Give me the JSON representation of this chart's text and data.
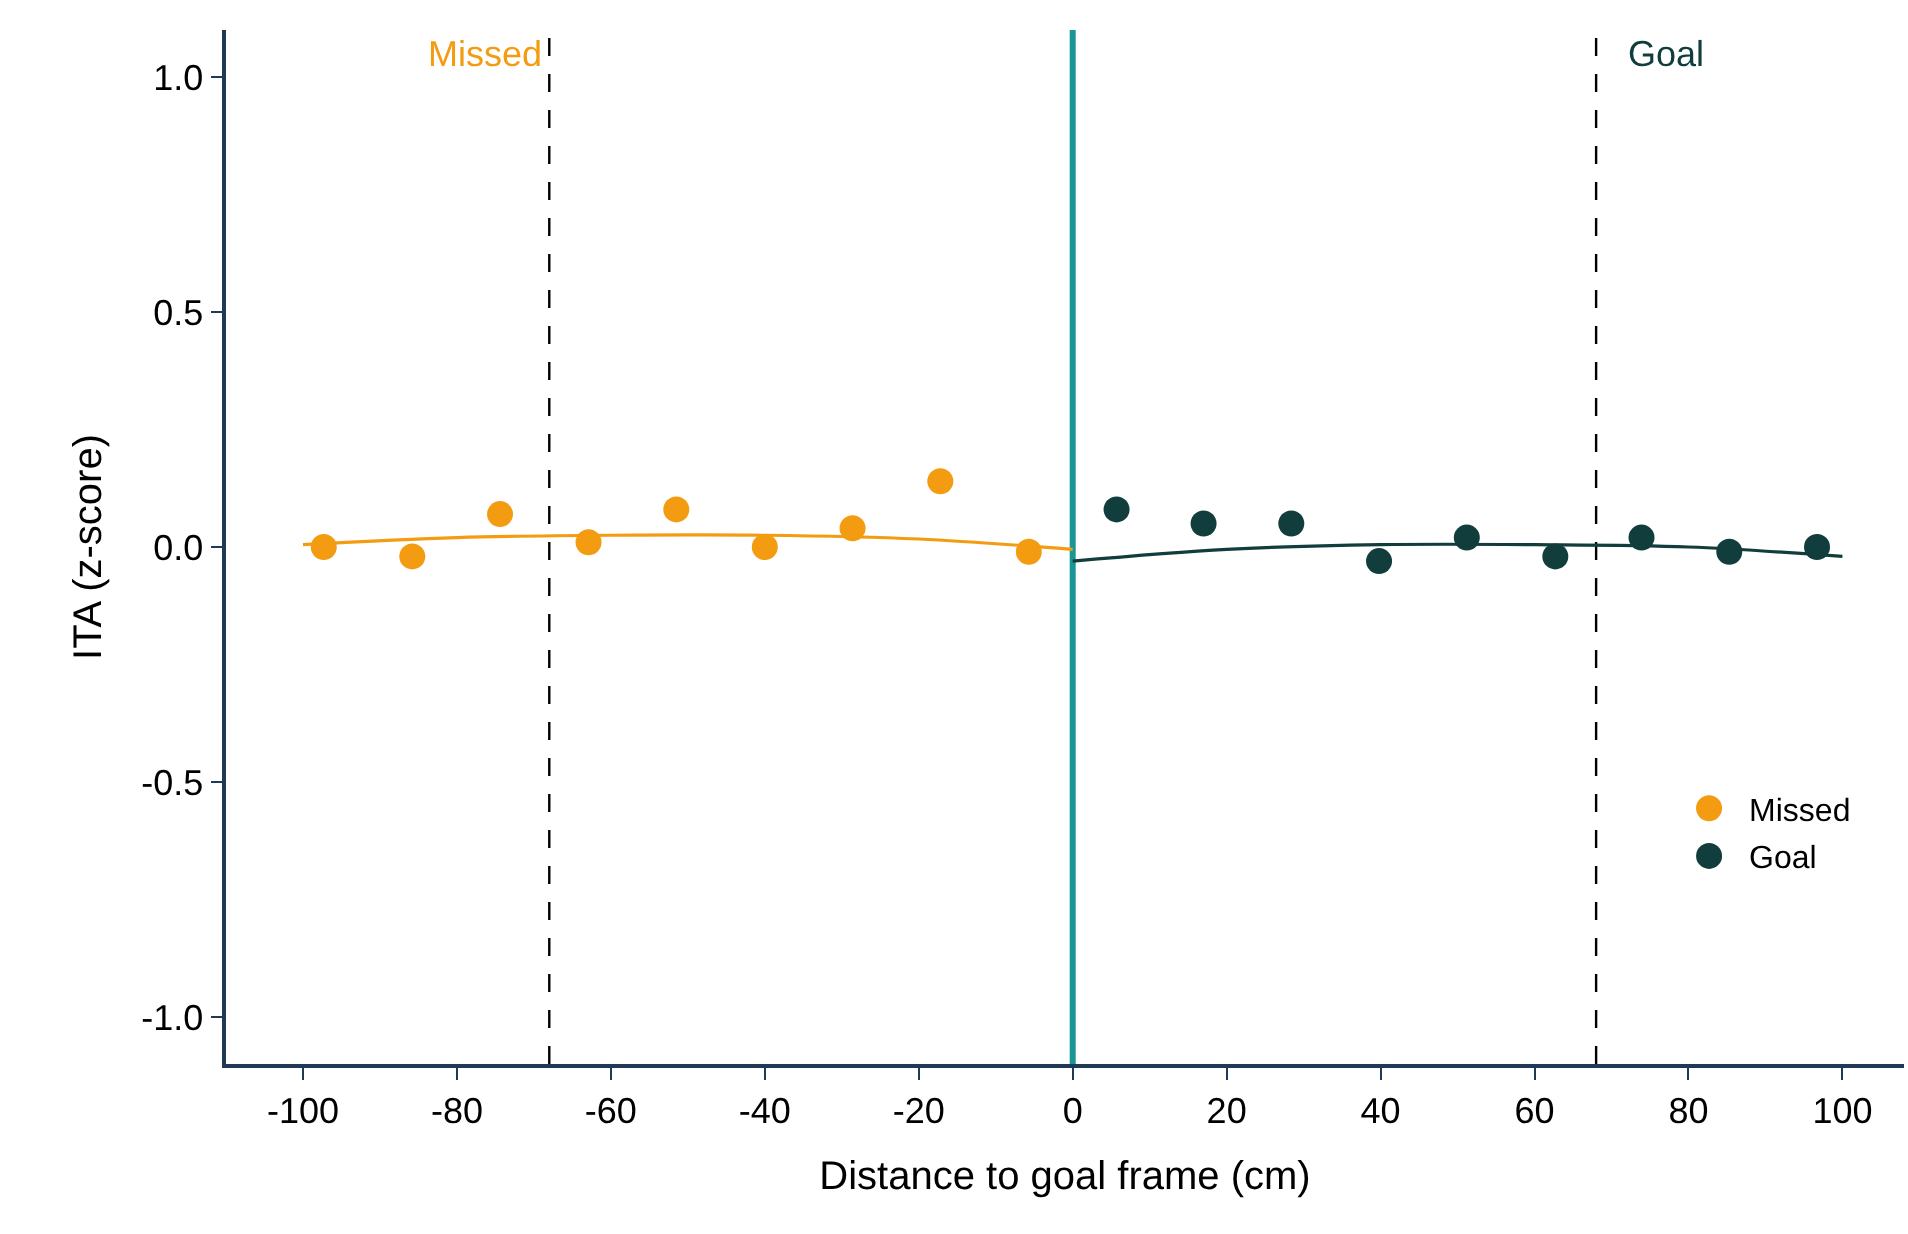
{
  "chart_data": {
    "type": "scatter",
    "xlabel": "Distance to goal frame (cm)",
    "ylabel": "ITA (z-score)",
    "xlim": [
      -110,
      108
    ],
    "xticks": [
      -100,
      -80,
      -60,
      -40,
      -20,
      0,
      20,
      40,
      60,
      80,
      100
    ],
    "ylim": [
      -1.1,
      1.1
    ],
    "yticks": [
      {
        "value": -1,
        "label": "-1.0"
      },
      {
        "value": -0.5,
        "label": "-0.5"
      },
      {
        "value": 0,
        "label": "0.0"
      },
      {
        "value": 0.5,
        "label": "0.5"
      },
      {
        "value": 1,
        "label": "1.0"
      }
    ],
    "grid": false,
    "legend": "bottom right",
    "marker": "circle",
    "series": [
      {
        "name": "Missed",
        "color": "#f39c12",
        "x": [
          -97.3,
          -85.8,
          -74.4,
          -62.9,
          -51.5,
          -40.0,
          -28.6,
          -17.2,
          -5.7
        ],
        "values": [
          0.0,
          -0.02,
          0.07,
          0.01,
          0.08,
          0.0,
          0.04,
          0.14,
          -0.01
        ]
      },
      {
        "name": "Goal",
        "color": "#113d3c",
        "x": [
          5.7,
          17.0,
          28.4,
          39.8,
          51.2,
          62.7,
          73.9,
          85.3,
          96.7
        ],
        "values": [
          0.08,
          0.05,
          0.05,
          -0.03,
          0.02,
          -0.02,
          0.02,
          -0.01,
          0.0
        ]
      },
      {
        "color": "#f39c12",
        "type": "line",
        "marker": "none",
        "x": [
          -100,
          -80,
          -60,
          -40,
          -20,
          0
        ],
        "values": [
          0.005,
          0.02,
          0.025,
          0.025,
          0.017,
          -0.005
        ]
      },
      {
        "color": "#113d3c",
        "type": "line",
        "marker": "none",
        "x": [
          0,
          20,
          40,
          60,
          80,
          100
        ],
        "values": [
          -0.03,
          -0.005,
          0.005,
          0.005,
          0.0,
          -0.02
        ]
      }
    ],
    "ref_lines": [
      {
        "axis": "x",
        "value": -68,
        "label": "Missed",
        "color": "#000000",
        "line_style": "dashed"
      },
      {
        "axis": "x",
        "value": 68,
        "label": "Goal",
        "color": "#000000",
        "line_style": "dashed"
      },
      {
        "axis": "x",
        "value": 0,
        "color": "#1a9696",
        "line_style": "solid"
      }
    ]
  }
}
